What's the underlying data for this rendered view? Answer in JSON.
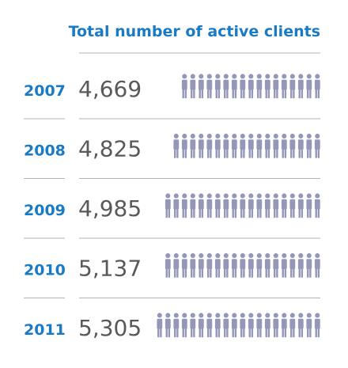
{
  "chart_data": {
    "type": "pictograph",
    "title": "Total number of active clients",
    "categories": [
      "2007",
      "2008",
      "2009",
      "2010",
      "2011"
    ],
    "values": [
      4669,
      4825,
      4985,
      5137,
      5305
    ],
    "value_labels": [
      "4,669",
      "4,825",
      "4,985",
      "5,137",
      "5,305"
    ],
    "icon": "person-icon",
    "icon_counts": [
      17,
      18,
      19,
      19,
      20
    ],
    "colors": {
      "title": "#1a7bc4",
      "year": "#1a7bc4",
      "value": "#58595b",
      "icon": "#9597b8",
      "divider": "#b3b3b3"
    }
  }
}
